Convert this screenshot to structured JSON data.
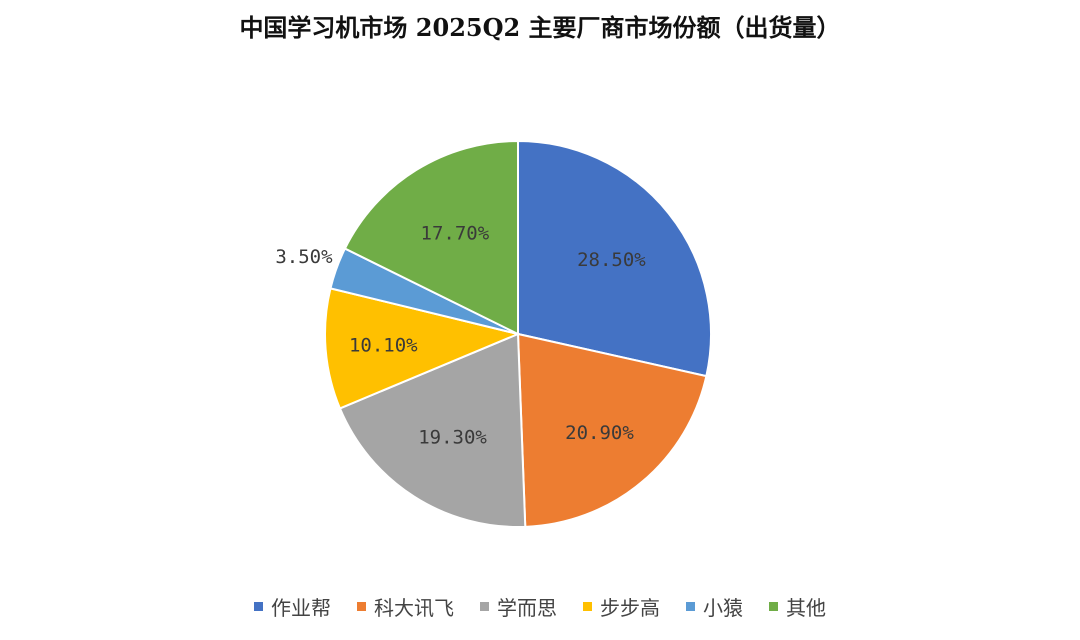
{
  "chart_data": {
    "type": "pie",
    "title": "中国学习机市场 2025Q2 主要厂商市场份额（出货量）",
    "categories": [
      "作业帮",
      "科大讯飞",
      "学而思",
      "步步高",
      "小猿",
      "其他"
    ],
    "values": [
      28.5,
      20.9,
      19.3,
      10.1,
      3.5,
      17.7
    ],
    "data_labels": [
      "28.50%",
      "20.90%",
      "19.30%",
      "10.10%",
      "3.50%",
      "17.70%"
    ],
    "colors": [
      "#4472C4",
      "#ED7D31",
      "#A5A5A5",
      "#FFC000",
      "#5B9BD5",
      "#70AD47"
    ],
    "legend_position": "bottom",
    "start_angle": "12 o'clock",
    "direction": "clockwise"
  }
}
